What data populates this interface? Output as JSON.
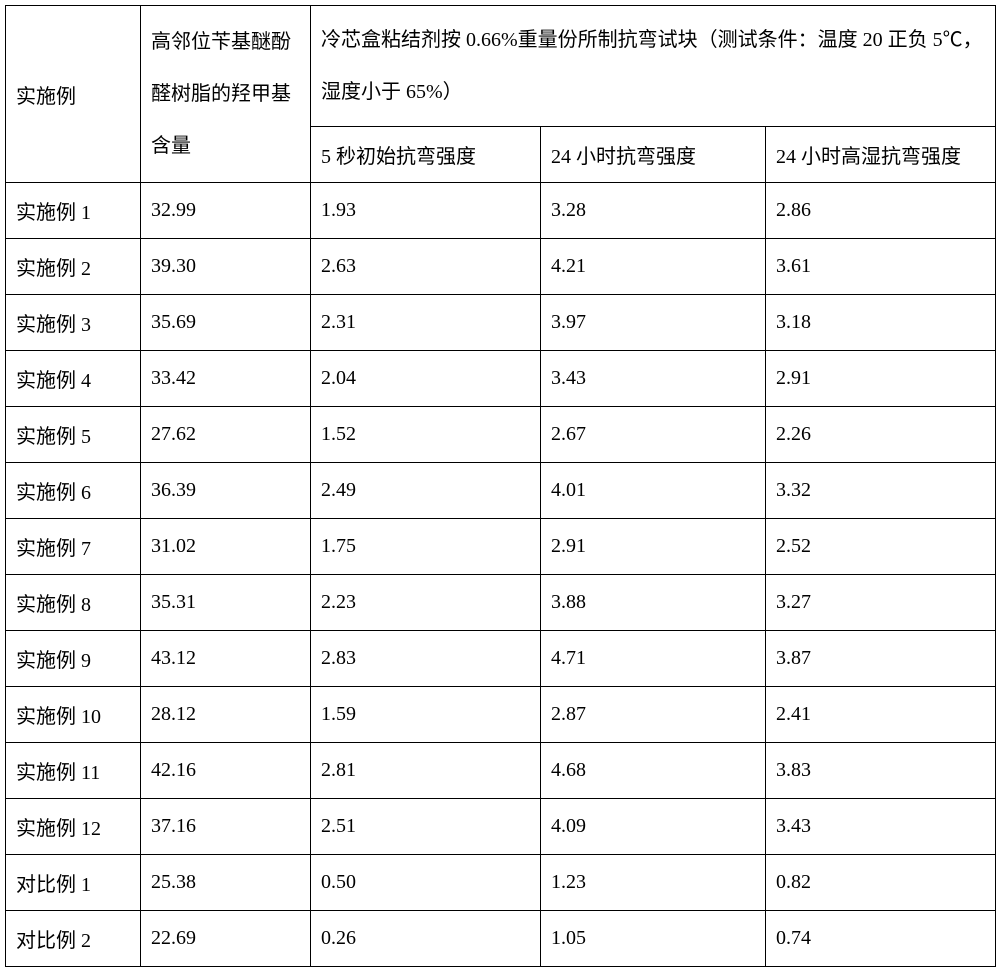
{
  "table": {
    "header": {
      "col1": "实施例",
      "col2": "高邻位苄基醚酚醛树脂的羟甲基含量",
      "merged_header": "冷芯盒粘结剂按 0.66%重量份所制抗弯试块（测试条件：温度 20 正负 5℃，湿度小于 65%）",
      "sub1": "5 秒初始抗弯强度",
      "sub2": "24 小时抗弯强度",
      "sub3": "24 小时高湿抗弯强度"
    },
    "rows": [
      {
        "c1": "实施例 1",
        "c2": "32.99",
        "c3": "1.93",
        "c4": "3.28",
        "c5": "2.86"
      },
      {
        "c1": "实施例 2",
        "c2": "39.30",
        "c3": "2.63",
        "c4": "4.21",
        "c5": "3.61"
      },
      {
        "c1": "实施例 3",
        "c2": "35.69",
        "c3": "2.31",
        "c4": "3.97",
        "c5": "3.18"
      },
      {
        "c1": "实施例 4",
        "c2": "33.42",
        "c3": "2.04",
        "c4": "3.43",
        "c5": "2.91"
      },
      {
        "c1": "实施例 5",
        "c2": "27.62",
        "c3": "1.52",
        "c4": "2.67",
        "c5": "2.26"
      },
      {
        "c1": "实施例 6",
        "c2": "36.39",
        "c3": "2.49",
        "c4": "4.01",
        "c5": "3.32"
      },
      {
        "c1": "实施例 7",
        "c2": "31.02",
        "c3": "1.75",
        "c4": "2.91",
        "c5": "2.52"
      },
      {
        "c1": "实施例 8",
        "c2": "35.31",
        "c3": "2.23",
        "c4": "3.88",
        "c5": "3.27"
      },
      {
        "c1": "实施例 9",
        "c2": "43.12",
        "c3": "2.83",
        "c4": "4.71",
        "c5": "3.87"
      },
      {
        "c1": "实施例 10",
        "c2": "28.12",
        "c3": "1.59",
        "c4": "2.87",
        "c5": "2.41"
      },
      {
        "c1": "实施例 11",
        "c2": "42.16",
        "c3": "2.81",
        "c4": "4.68",
        "c5": "3.83"
      },
      {
        "c1": "实施例 12",
        "c2": "37.16",
        "c3": "2.51",
        "c4": "4.09",
        "c5": "3.43"
      },
      {
        "c1": "对比例 1",
        "c2": "25.38",
        "c3": "0.50",
        "c4": "1.23",
        "c5": "0.82"
      },
      {
        "c1": "对比例 2",
        "c2": "22.69",
        "c3": "0.26",
        "c4": "1.05",
        "c5": "0.74"
      }
    ]
  }
}
